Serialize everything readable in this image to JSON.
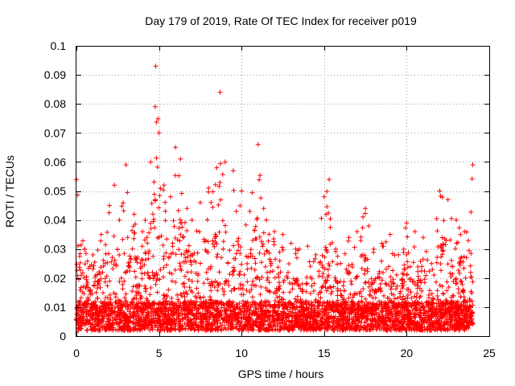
{
  "chart_data": {
    "type": "scatter",
    "title": "Day 179 of 2019, Rate Of TEC Index for receiver p019",
    "xlabel": "GPS time / hours",
    "ylabel": "ROTI / TECUs",
    "xlim": [
      0,
      25
    ],
    "ylim": [
      0,
      0.1
    ],
    "x_ticks": [
      0,
      5,
      10,
      15,
      20,
      25
    ],
    "x_tick_labels": [
      "0",
      "5",
      "10",
      "15",
      "20",
      "25"
    ],
    "y_ticks": [
      0,
      0.01,
      0.02,
      0.03,
      0.04,
      0.05,
      0.06,
      0.07,
      0.08,
      0.09,
      0.1
    ],
    "y_tick_labels": [
      "0",
      "0.01",
      "0.02",
      "0.03",
      "0.04",
      "0.05",
      "0.06",
      "0.07",
      "0.08",
      "0.09",
      "0.1"
    ],
    "grid": true,
    "marker": "+",
    "color": "#ff0000",
    "x_range_of_data": [
      0,
      24
    ],
    "series": [
      {
        "name": "p019",
        "envelope": {
          "description": "approximate upper envelope of ROTI values (hours, TECU/min)",
          "x": [
            0,
            0.5,
            1,
            1.5,
            2,
            2.3,
            2.6,
            3,
            3.5,
            4,
            4.5,
            4.8,
            5,
            5.3,
            5.7,
            6,
            6.3,
            6.7,
            7,
            7.5,
            8,
            8.5,
            8.7,
            9,
            9.5,
            10,
            10.5,
            11,
            11.5,
            12,
            12.5,
            13,
            13.5,
            14,
            14.5,
            15,
            15.3,
            15.7,
            16,
            16.5,
            17,
            17.5,
            18,
            18.5,
            19,
            19.5,
            20,
            20.5,
            21,
            21.5,
            22,
            22.5,
            23,
            23.5,
            24
          ],
          "y": [
            0.054,
            0.03,
            0.028,
            0.035,
            0.045,
            0.052,
            0.04,
            0.059,
            0.042,
            0.036,
            0.06,
            0.093,
            0.07,
            0.052,
            0.048,
            0.065,
            0.061,
            0.044,
            0.04,
            0.046,
            0.051,
            0.058,
            0.084,
            0.06,
            0.057,
            0.05,
            0.043,
            0.066,
            0.04,
            0.036,
            0.035,
            0.032,
            0.03,
            0.031,
            0.028,
            0.048,
            0.054,
            0.03,
            0.025,
            0.034,
            0.036,
            0.044,
            0.03,
            0.032,
            0.035,
            0.028,
            0.039,
            0.036,
            0.034,
            0.025,
            0.05,
            0.047,
            0.04,
            0.036,
            0.059
          ]
        },
        "baseline_range": [
          0.002,
          0.012
        ]
      }
    ]
  }
}
